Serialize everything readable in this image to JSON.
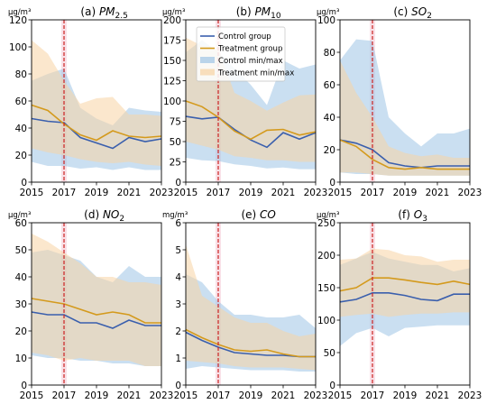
{
  "colors": {
    "control": "#3a5fad",
    "treatment": "#d49a1d",
    "control_band": "#9ec4e6",
    "treatment_band": "#f7d3a4",
    "vline": "#cc2222",
    "vspan": "#f4c6d3"
  },
  "legend": {
    "control_group": "Control group",
    "treatment_group": "Treatment group",
    "control_minmax": "Control min/max",
    "treatment_minmax": "Treatment min/max"
  },
  "chart_data": [
    {
      "type": "line",
      "title_prefix": "(a)",
      "title_pollutant": "PM",
      "title_sub": "2.5",
      "unit": "µg/m³",
      "x": [
        2015,
        2016,
        2017,
        2018,
        2019,
        2020,
        2021,
        2022,
        2023
      ],
      "xticks": [
        "2015",
        "2017",
        "2019",
        "2021",
        "2023"
      ],
      "yticks": [
        "0",
        "20",
        "40",
        "60",
        "80",
        "100",
        "120"
      ],
      "ylim": [
        0,
        120
      ],
      "intervention_year": 2017,
      "series": [
        {
          "name": "Control group",
          "values": [
            47,
            45,
            44,
            33,
            29,
            25,
            33,
            30,
            32
          ]
        },
        {
          "name": "Treatment group",
          "values": [
            57,
            53,
            43,
            35,
            31,
            38,
            34,
            33,
            34
          ]
        },
        {
          "name": "Control min/max",
          "min": [
            15,
            12,
            12,
            10,
            11,
            9,
            11,
            9,
            9
          ],
          "max": [
            75,
            80,
            84,
            55,
            47,
            42,
            55,
            53,
            52
          ]
        },
        {
          "name": "Treatment min/max",
          "min": [
            25,
            22,
            20,
            17,
            15,
            14,
            15,
            13,
            12
          ],
          "max": [
            105,
            95,
            75,
            58,
            62,
            63,
            50,
            50,
            49
          ]
        }
      ]
    },
    {
      "type": "line",
      "title_prefix": "(b)",
      "title_pollutant": "PM",
      "title_sub": "10",
      "unit": "µg/m³",
      "x": [
        2015,
        2016,
        2017,
        2018,
        2019,
        2020,
        2021,
        2022,
        2023
      ],
      "xticks": [
        "2015",
        "2017",
        "2019",
        "2021",
        "2023"
      ],
      "yticks": [
        "0",
        "25",
        "50",
        "75",
        "100",
        "125",
        "150",
        "175",
        "200"
      ],
      "ylim": [
        0,
        200
      ],
      "intervention_year": 2017,
      "series": [
        {
          "name": "Control group",
          "values": [
            81,
            78,
            80,
            65,
            52,
            43,
            61,
            53,
            61
          ]
        },
        {
          "name": "Treatment group",
          "values": [
            100,
            93,
            80,
            63,
            53,
            64,
            65,
            58,
            62
          ]
        },
        {
          "name": "Control min/max",
          "min": [
            30,
            27,
            26,
            22,
            20,
            17,
            18,
            16,
            16
          ],
          "max": [
            160,
            175,
            160,
            140,
            120,
            95,
            150,
            140,
            145
          ]
        },
        {
          "name": "Treatment min/max",
          "min": [
            50,
            45,
            40,
            32,
            30,
            27,
            27,
            25,
            25
          ],
          "max": [
            178,
            168,
            165,
            110,
            100,
            88,
            98,
            107,
            108
          ]
        }
      ]
    },
    {
      "type": "line",
      "title_prefix": "(c)",
      "title_pollutant": "SO",
      "title_sub": "2",
      "unit": "µg/m³",
      "x": [
        2015,
        2016,
        2017,
        2018,
        2019,
        2020,
        2021,
        2022,
        2023
      ],
      "xticks": [
        "2015",
        "2017",
        "2019",
        "2021",
        "2023"
      ],
      "yticks": [
        "0",
        "20",
        "40",
        "60",
        "80",
        "100"
      ],
      "ylim": [
        0,
        100
      ],
      "intervention_year": 2017,
      "series": [
        {
          "name": "Control group",
          "values": [
            26,
            24,
            20,
            12,
            10,
            9,
            10,
            10,
            10
          ]
        },
        {
          "name": "Treatment group",
          "values": [
            26,
            22,
            14,
            9,
            8,
            9,
            8,
            8,
            8
          ]
        },
        {
          "name": "Control min/max",
          "min": [
            6,
            5,
            5,
            4,
            4,
            4,
            4,
            4,
            4
          ],
          "max": [
            75,
            88,
            87,
            40,
            30,
            22,
            30,
            30,
            33
          ]
        },
        {
          "name": "Treatment min/max",
          "min": [
            6,
            6,
            5,
            4,
            4,
            4,
            4,
            4,
            4
          ],
          "max": [
            75,
            55,
            40,
            22,
            18,
            16,
            17,
            15,
            15
          ]
        }
      ]
    },
    {
      "type": "line",
      "title_prefix": "(d)",
      "title_pollutant": "NO",
      "title_sub": "2",
      "unit": "µg/m³",
      "x": [
        2015,
        2016,
        2017,
        2018,
        2019,
        2020,
        2021,
        2022,
        2023
      ],
      "xticks": [
        "2015",
        "2017",
        "2019",
        "2021",
        "2023"
      ],
      "yticks": [
        "0",
        "10",
        "20",
        "30",
        "40",
        "50",
        "60"
      ],
      "ylim": [
        0,
        60
      ],
      "intervention_year": 2017,
      "series": [
        {
          "name": "Control group",
          "values": [
            27,
            26,
            26,
            23,
            23,
            21,
            24,
            22,
            22
          ]
        },
        {
          "name": "Treatment group",
          "values": [
            32,
            31,
            30,
            28,
            26,
            27,
            26,
            23,
            23
          ]
        },
        {
          "name": "Control min/max",
          "min": [
            11,
            10,
            10,
            9,
            9,
            8,
            8,
            7,
            7
          ],
          "max": [
            49,
            50,
            48,
            46,
            40,
            38,
            44,
            40,
            40
          ]
        },
        {
          "name": "Treatment min/max",
          "min": [
            12,
            11,
            9,
            10,
            9,
            9,
            9,
            7,
            7
          ],
          "max": [
            56,
            53,
            49,
            45,
            40,
            40,
            38,
            38,
            37
          ]
        }
      ]
    },
    {
      "type": "line",
      "title_prefix": "(e)",
      "title_pollutant": "CO",
      "title_sub": "",
      "unit": "mg/m³",
      "x": [
        2015,
        2016,
        2017,
        2018,
        2019,
        2020,
        2021,
        2022,
        2023
      ],
      "xticks": [
        "2015",
        "2017",
        "2019",
        "2021",
        "2023"
      ],
      "yticks": [
        "0",
        "1",
        "2",
        "3",
        "4",
        "5",
        "6"
      ],
      "ylim": [
        0,
        6
      ],
      "intervention_year": 2017,
      "series": [
        {
          "name": "Control group",
          "values": [
            1.95,
            1.65,
            1.4,
            1.2,
            1.15,
            1.1,
            1.1,
            1.05,
            1.05
          ]
        },
        {
          "name": "Treatment group",
          "values": [
            2.05,
            1.75,
            1.5,
            1.3,
            1.25,
            1.3,
            1.15,
            1.05,
            1.05
          ]
        },
        {
          "name": "Control min/max",
          "min": [
            0.6,
            0.7,
            0.65,
            0.6,
            0.55,
            0.55,
            0.55,
            0.5,
            0.5
          ],
          "max": [
            4.1,
            3.8,
            3.1,
            2.6,
            2.6,
            2.5,
            2.5,
            2.6,
            2.1
          ]
        },
        {
          "name": "Treatment min/max",
          "min": [
            0.9,
            0.85,
            0.8,
            0.7,
            0.65,
            0.65,
            0.65,
            0.6,
            0.55
          ],
          "max": [
            5.2,
            3.3,
            2.9,
            2.5,
            2.3,
            2.3,
            2.0,
            1.8,
            1.9
          ]
        }
      ]
    },
    {
      "type": "line",
      "title_prefix": "(f)",
      "title_pollutant": "O",
      "title_sub": "3",
      "unit": "µg/m³",
      "x": [
        2015,
        2016,
        2017,
        2018,
        2019,
        2020,
        2021,
        2022,
        2023
      ],
      "xticks": [
        "2015",
        "2017",
        "2019",
        "2021",
        "2023"
      ],
      "yticks": [
        "0",
        "50",
        "100",
        "150",
        "200",
        "250"
      ],
      "ylim": [
        0,
        250
      ],
      "intervention_year": 2017,
      "series": [
        {
          "name": "Control group",
          "values": [
            128,
            132,
            142,
            142,
            138,
            132,
            130,
            140,
            140
          ]
        },
        {
          "name": "Treatment group",
          "values": [
            145,
            150,
            165,
            165,
            162,
            158,
            155,
            160,
            155
          ]
        },
        {
          "name": "Control min/max",
          "min": [
            60,
            80,
            88,
            75,
            88,
            90,
            92,
            92,
            92
          ],
          "max": [
            185,
            195,
            205,
            195,
            190,
            185,
            185,
            175,
            180
          ]
        },
        {
          "name": "Treatment min/max",
          "min": [
            105,
            108,
            110,
            105,
            108,
            110,
            110,
            112,
            112
          ],
          "max": [
            193,
            195,
            210,
            208,
            200,
            198,
            190,
            193,
            193
          ]
        }
      ]
    }
  ]
}
